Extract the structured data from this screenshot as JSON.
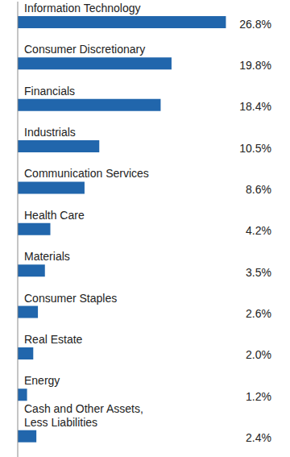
{
  "chart_data": {
    "type": "bar",
    "orientation": "horizontal",
    "categories": [
      "Information Technology",
      "Consumer Discretionary",
      "Financials",
      "Industrials",
      "Communication Services",
      "Health Care",
      "Materials",
      "Consumer Staples",
      "Real Estate",
      "Energy",
      "Cash and Other Assets, Less Liabilities"
    ],
    "values": [
      26.8,
      19.8,
      18.4,
      10.5,
      8.6,
      4.2,
      3.5,
      2.6,
      2.0,
      1.2,
      2.4
    ],
    "value_labels": [
      "26.8%",
      "19.8%",
      "18.4%",
      "10.5%",
      "8.6%",
      "4.2%",
      "3.5%",
      "2.6%",
      "2.0%",
      "1.2%",
      "2.4%"
    ],
    "data_labels": true,
    "color": "#2166ac",
    "xlim": [
      0,
      28
    ],
    "tick_labels": false,
    "grid": false
  }
}
